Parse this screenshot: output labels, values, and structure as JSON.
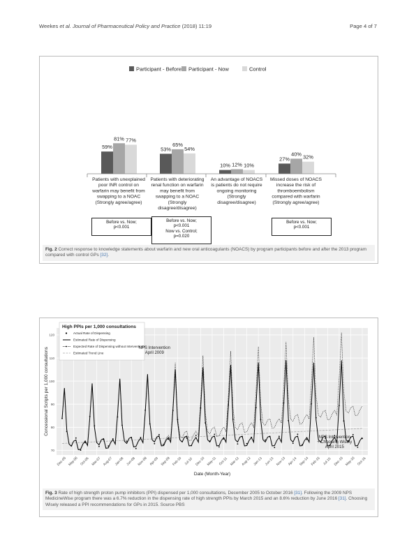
{
  "header": {
    "authors": "Weekes",
    "journal_text": "et al. Journal of Pharmaceutical Policy and Practice",
    "citation": "(2018) 11:19",
    "page": "Page 4 of 7"
  },
  "figure2": {
    "caption_label": "Fig. 2",
    "caption_text": "Correct response to knowledge statements about warfarin and new oral anticoagulants (NOACS) by program participants before and after the 2013 program compared with control GPs",
    "caption_ref": "[32]",
    "notes": [
      [
        "Before vs. Now;",
        "p<0.001"
      ],
      [
        "Before vs. Now;",
        "p<0.001",
        "Now vs. Control;",
        "p=0.020"
      ],
      [
        "Before vs. Now;",
        "p<0.001"
      ]
    ],
    "chart_data": {
      "type": "bar",
      "series": [
        {
          "name": "Participant - Before",
          "color": "#595959",
          "values": [
            59,
            53,
            10,
            27
          ],
          "labels": [
            "59%",
            "53%",
            "10%",
            "27%"
          ]
        },
        {
          "name": "Participant - Now",
          "color": "#a6a6a6",
          "values": [
            81,
            65,
            12,
            40
          ],
          "labels": [
            "81%",
            "65%",
            "12%",
            "40%"
          ]
        },
        {
          "name": "Control",
          "color": "#d9d9d9",
          "values": [
            77,
            54,
            10,
            32
          ],
          "labels": [
            "77%",
            "54%",
            "10%",
            "32%"
          ]
        }
      ],
      "categories": [
        [
          "Patients with unexplained",
          "poor INR control on",
          "warfarin may benefit from",
          "swapping to a NOAC",
          "(Strongly agree/agree)"
        ],
        [
          "Patients with deteriorating",
          "renal function on warfarin",
          "may benefit from",
          "swapping to a NOAC",
          "(Strongly",
          "disagree/disagree)"
        ],
        [
          "An advantage of NOACS",
          "is patients do not require",
          "ongoing monitoring",
          "(Strongly",
          "disagree/disagree)"
        ],
        [
          "Missed doses of NOACS",
          "increase the risk of",
          "thromboembolism",
          "compared with warfarin",
          "(Strongly agree/agree)"
        ]
      ],
      "legend_position": "top",
      "ylim": [
        0,
        100
      ]
    }
  },
  "figure3": {
    "caption_label": "Fig. 3",
    "caption_text_1": "Rate of high strength proton pump inhibitors (PPI) dispensed per 1,000 consultations, December 2005 to October 2016",
    "caption_ref_1": "[31]",
    "caption_text_2": ". Following the 2009 NPS MedicineWise program there was a 6.7% reduction in the dispensing rate of high strength PPIs by March 2015 and an 8.6% reduction by June 2016",
    "caption_ref_2": "[31]",
    "caption_text_3": ". Choosing Wisely released a PPI recommendations for GPs in 2015. Source PBS",
    "chart_data": {
      "type": "line",
      "title": "High PPIs per 1,000 consultations",
      "xlabel": "Date (Month-Year)",
      "ylabel": "Concessional Scripts per 1,000 consultations",
      "yticks": [
        "70",
        "80",
        "90",
        "100",
        "110",
        "120"
      ],
      "ylim": [
        68,
        123
      ],
      "xticks": [
        "Dec-05",
        "May-06",
        "Oct-06",
        "Mar-07",
        "Aug-07",
        "Jan-08",
        "Jun-08",
        "Nov-08",
        "Apr-09",
        "Sep-09",
        "Feb-10",
        "Jul-10",
        "Dec-10",
        "May-11",
        "Oct-11",
        "Mar-12",
        "Aug-12",
        "Jan-13",
        "Jun-13",
        "Nov-13",
        "Apr-14",
        "Sep-14",
        "Feb-15",
        "Jul-15",
        "Dec-15",
        "May-16",
        "Oct-16"
      ],
      "legend_entries": [
        "Actual Rate of Dispensing",
        "Estimated Rate of Dispensing",
        "Expected Rate of Dispensing without Interventions",
        "Estimated Trend Line"
      ],
      "annotations": [
        {
          "lines": [
            "NPS Intervention",
            "April 2009"
          ]
        },
        {
          "lines": [
            "NPS Intervention",
            "+ Choosing Wisely",
            "April 2015"
          ]
        }
      ],
      "series_summary": {
        "months": 131,
        "base_level_start": 73,
        "annual_peak_month": "January",
        "peaks_estimated": [
          97,
          99,
          101,
          103,
          105,
          106,
          107,
          108,
          109,
          108,
          109
        ],
        "peaks_expected_without_interventions": [
          97,
          99,
          101,
          105,
          108,
          111,
          113,
          115,
          117,
          119,
          121
        ]
      },
      "grid": true
    }
  }
}
